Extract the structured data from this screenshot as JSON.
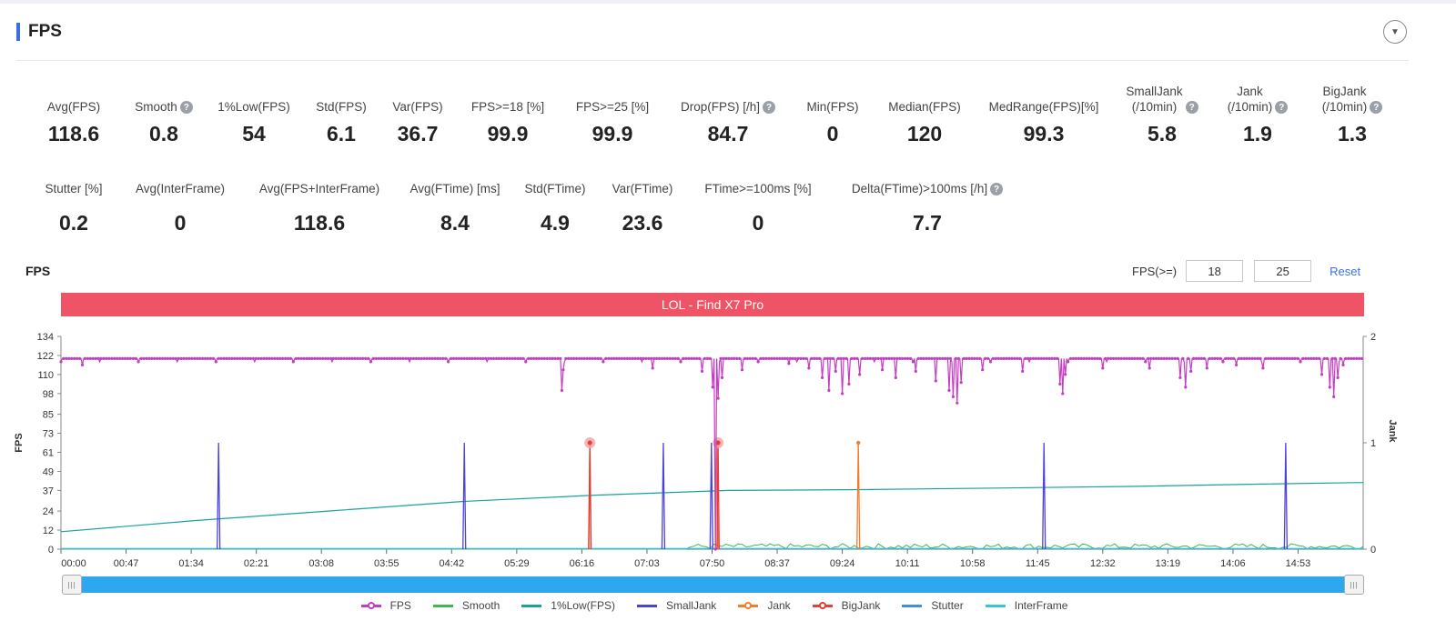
{
  "section": {
    "title": "FPS"
  },
  "metrics_row1": [
    {
      "label": "Avg(FPS)",
      "value": "118.6",
      "help": false,
      "w": 106
    },
    {
      "label": "Smooth",
      "value": "0.8",
      "help": true,
      "w": 92
    },
    {
      "label": "1%Low(FPS)",
      "value": "54",
      "help": false,
      "w": 106
    },
    {
      "label": "Std(FPS)",
      "value": "6.1",
      "help": false,
      "w": 86
    },
    {
      "label": "Var(FPS)",
      "value": "36.7",
      "help": false,
      "w": 82
    },
    {
      "label": "FPS>=18 [%]",
      "value": "99.9",
      "help": false,
      "w": 116
    },
    {
      "label": "FPS>=25 [%]",
      "value": "99.9",
      "help": false,
      "w": 114
    },
    {
      "label": "Drop(FPS) [/h]",
      "value": "84.7",
      "help": true,
      "w": 140
    },
    {
      "label": "Min(FPS)",
      "value": "0",
      "help": false,
      "w": 90
    },
    {
      "label": "Median(FPS)",
      "value": "120",
      "help": false,
      "w": 112
    },
    {
      "label": "MedRange(FPS)[%]",
      "value": "99.3",
      "help": false,
      "w": 150
    },
    {
      "label": "SmallJank\n(/10min)",
      "value": "5.8",
      "help": true,
      "w": 110
    },
    {
      "label": "Jank\n(/10min)",
      "value": "1.9",
      "help": true,
      "w": 100
    },
    {
      "label": "BigJank\n(/10min)",
      "value": "1.3",
      "help": true,
      "w": 108
    }
  ],
  "metrics_row2": [
    {
      "label": "Stutter [%]",
      "value": "0.2",
      "help": false,
      "w": 106
    },
    {
      "label": "Avg(InterFrame)",
      "value": "0",
      "help": false,
      "w": 128
    },
    {
      "label": "Avg(FPS+InterFrame)",
      "value": "118.6",
      "help": false,
      "w": 178
    },
    {
      "label": "Avg(FTime) [ms]",
      "value": "8.4",
      "help": false,
      "w": 120
    },
    {
      "label": "Std(FTime)",
      "value": "4.9",
      "help": false,
      "w": 100
    },
    {
      "label": "Var(FTime)",
      "value": "23.6",
      "help": false,
      "w": 92
    },
    {
      "label": "FTime>=100ms [%]",
      "value": "0",
      "help": false,
      "w": 162
    },
    {
      "label": "Delta(FTime)>100ms [/h]",
      "value": "7.7",
      "help": true,
      "w": 210
    }
  ],
  "chart_header": {
    "label": "FPS",
    "filter_label": "FPS(>=)",
    "threshold_1": "18",
    "threshold_2": "25",
    "reset_label": "Reset"
  },
  "scrollbar": {
    "handle_glyph": "|||"
  },
  "chart_data": {
    "type": "line",
    "banner": "LOL - Find X7 Pro",
    "ylabel": "FPS",
    "y2label": "Jank",
    "yticks": [
      0,
      12,
      24,
      37,
      49,
      61,
      73,
      85,
      98,
      110,
      122,
      134
    ],
    "ylim": [
      0,
      134
    ],
    "y2ticks": [
      0,
      1,
      2
    ],
    "y2lim": [
      0,
      2
    ],
    "xticks": [
      "00:00",
      "00:47",
      "01:34",
      "02:21",
      "03:08",
      "03:55",
      "04:42",
      "05:29",
      "06:16",
      "07:03",
      "07:50",
      "08:37",
      "09:24",
      "10:11",
      "10:58",
      "11:45",
      "12:32",
      "13:19",
      "14:06",
      "14:53"
    ],
    "x_range_seconds": [
      0,
      975
    ],
    "legend": [
      "FPS",
      "Smooth",
      "1%Low(FPS)",
      "SmallJank",
      "Jank",
      "BigJank",
      "Stutter",
      "InterFrame"
    ],
    "colors": {
      "FPS": "#c43ec3",
      "Smooth": "#3fb84f",
      "1%Low(FPS)": "#17a39d",
      "SmallJank": "#4b43d8",
      "Jank": "#f27d2c",
      "BigJank": "#e53c3c",
      "Stutter": "#3e8ee6",
      "InterFrame": "#2fc8d6"
    },
    "fps_baseline": 120,
    "fps_dips": [
      {
        "t": 16,
        "v": 116
      },
      {
        "t": 375,
        "v": 100
      },
      {
        "t": 376,
        "v": 113
      },
      {
        "t": 443,
        "v": 114
      },
      {
        "t": 480,
        "v": 112
      },
      {
        "t": 488,
        "v": 102
      },
      {
        "t": 490,
        "v": 0
      },
      {
        "t": 492,
        "v": 95
      },
      {
        "t": 495,
        "v": 108
      },
      {
        "t": 510,
        "v": 113
      },
      {
        "t": 545,
        "v": 117
      },
      {
        "t": 560,
        "v": 114
      },
      {
        "t": 570,
        "v": 108
      },
      {
        "t": 575,
        "v": 100
      },
      {
        "t": 580,
        "v": 112
      },
      {
        "t": 585,
        "v": 98
      },
      {
        "t": 590,
        "v": 104
      },
      {
        "t": 598,
        "v": 110
      },
      {
        "t": 615,
        "v": 113
      },
      {
        "t": 625,
        "v": 108
      },
      {
        "t": 640,
        "v": 112
      },
      {
        "t": 655,
        "v": 106
      },
      {
        "t": 665,
        "v": 100
      },
      {
        "t": 668,
        "v": 96
      },
      {
        "t": 671,
        "v": 92
      },
      {
        "t": 674,
        "v": 105
      },
      {
        "t": 690,
        "v": 113
      },
      {
        "t": 720,
        "v": 112
      },
      {
        "t": 748,
        "v": 104
      },
      {
        "t": 750,
        "v": 98
      },
      {
        "t": 752,
        "v": 110
      },
      {
        "t": 780,
        "v": 114
      },
      {
        "t": 815,
        "v": 114
      },
      {
        "t": 838,
        "v": 108
      },
      {
        "t": 842,
        "v": 102
      },
      {
        "t": 846,
        "v": 112
      },
      {
        "t": 858,
        "v": 114
      },
      {
        "t": 880,
        "v": 116
      },
      {
        "t": 900,
        "v": 114
      },
      {
        "t": 944,
        "v": 110
      },
      {
        "t": 950,
        "v": 102
      },
      {
        "t": 953,
        "v": 96
      },
      {
        "t": 956,
        "v": 108
      },
      {
        "t": 960,
        "v": 116
      }
    ],
    "low1_series": [
      [
        0,
        11
      ],
      [
        100,
        18
      ],
      [
        200,
        24
      ],
      [
        300,
        30
      ],
      [
        400,
        34
      ],
      [
        500,
        37
      ],
      [
        600,
        37.5
      ],
      [
        700,
        38.5
      ],
      [
        800,
        39.5
      ],
      [
        900,
        41
      ],
      [
        975,
        42
      ]
    ],
    "smalljank_spikes": [
      {
        "t": 118,
        "v": 1
      },
      {
        "t": 302,
        "v": 1
      },
      {
        "t": 451,
        "v": 1
      },
      {
        "t": 487,
        "v": 1
      },
      {
        "t": 736,
        "v": 1
      },
      {
        "t": 917,
        "v": 1
      }
    ],
    "jank_spikes": [
      {
        "t": 396,
        "v": 1
      },
      {
        "t": 491,
        "v": 1
      },
      {
        "t": 597,
        "v": 1
      }
    ],
    "bigjank_spikes": [
      {
        "t": 396,
        "v": 1
      },
      {
        "t": 492,
        "v": 1
      }
    ]
  }
}
